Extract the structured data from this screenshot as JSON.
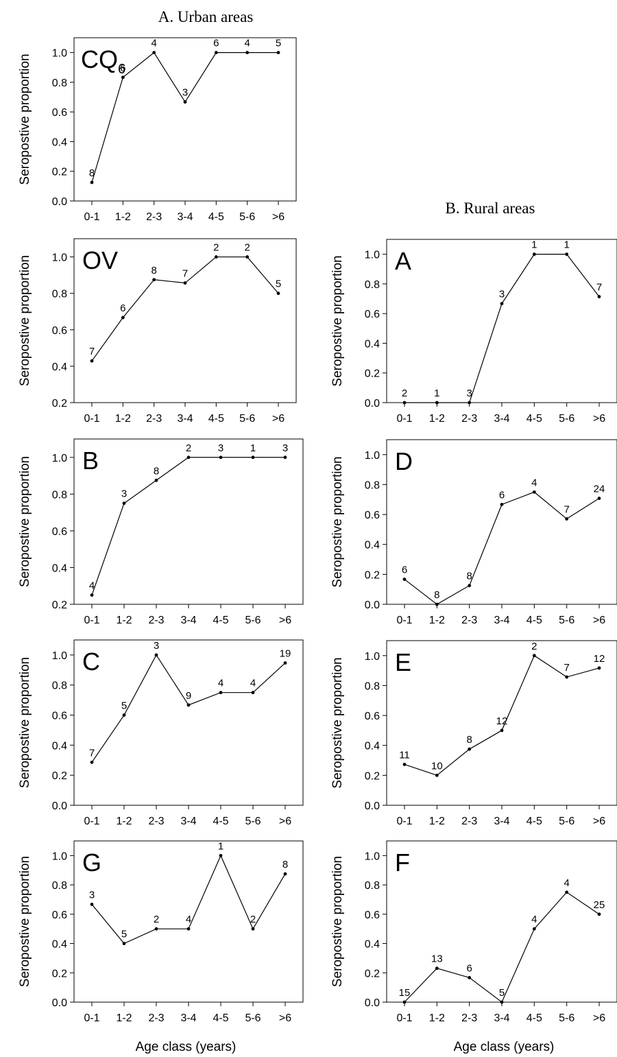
{
  "figure": {
    "heading_urban": "A.  Urban areas",
    "heading_rural": "B. Rural areas",
    "xlabel_left": "Age class (years)",
    "xlabel_right": "Age class (years)"
  },
  "chart_data": [
    {
      "id": "urban-cq",
      "type": "line",
      "panel_label": "CQ",
      "categories": [
        "0-1",
        "1-2",
        "2-3",
        "3-4",
        "4-5",
        "5-6",
        ">6"
      ],
      "values": [
        0.125,
        0.833,
        1.0,
        0.667,
        1.0,
        1.0,
        1.0
      ],
      "sample_sizes": [
        "8",
        "6",
        "4",
        "3",
        "6",
        "4",
        "5"
      ],
      "ylabel": "Seropostive proportion",
      "xlabel": "",
      "ylim": [
        0.0,
        1.1
      ],
      "yticks": [
        "0.0",
        "0.2",
        "0.4",
        "0.6",
        "0.8",
        "1.0"
      ],
      "grid": false
    },
    {
      "id": "urban-ov",
      "type": "line",
      "panel_label": "OV",
      "categories": [
        "0-1",
        "1-2",
        "2-3",
        "3-4",
        "4-5",
        "5-6",
        ">6"
      ],
      "values": [
        0.429,
        0.667,
        0.875,
        0.857,
        1.0,
        1.0,
        0.8
      ],
      "sample_sizes": [
        "7",
        "6",
        "8",
        "7",
        "2",
        "2",
        "5"
      ],
      "ylabel": "Seropostive proportion",
      "xlabel": "",
      "ylim": [
        0.2,
        1.1
      ],
      "yticks": [
        "0.2",
        "0.4",
        "0.6",
        "0.8",
        "1.0"
      ],
      "grid": false
    },
    {
      "id": "urban-b",
      "type": "line",
      "panel_label": "B",
      "categories": [
        "0-1",
        "1-2",
        "2-3",
        "3-4",
        "4-5",
        "5-6",
        ">6"
      ],
      "values": [
        0.25,
        0.75,
        0.875,
        1.0,
        1.0,
        1.0,
        1.0
      ],
      "sample_sizes": [
        "4",
        "3",
        "8",
        "2",
        "3",
        "1",
        "3"
      ],
      "ylabel": "Seropostive proportion",
      "xlabel": "",
      "ylim": [
        0.2,
        1.1
      ],
      "yticks": [
        "0.2",
        "0.4",
        "0.6",
        "0.8",
        "1.0"
      ],
      "grid": false
    },
    {
      "id": "urban-c",
      "type": "line",
      "panel_label": "C",
      "categories": [
        "0-1",
        "1-2",
        "2-3",
        "3-4",
        "4-5",
        "5-6",
        ">6"
      ],
      "values": [
        0.286,
        0.6,
        1.0,
        0.667,
        0.75,
        0.75,
        0.947
      ],
      "sample_sizes": [
        "7",
        "5",
        "3",
        "9",
        "4",
        "4",
        "19"
      ],
      "ylabel": "Seropostive proportion",
      "xlabel": "",
      "ylim": [
        0.0,
        1.1
      ],
      "yticks": [
        "0.0",
        "0.2",
        "0.4",
        "0.6",
        "0.8",
        "1.0"
      ],
      "grid": false
    },
    {
      "id": "urban-g",
      "type": "line",
      "panel_label": "G",
      "categories": [
        "0-1",
        "1-2",
        "2-3",
        "3-4",
        "4-5",
        "5-6",
        ">6"
      ],
      "values": [
        0.667,
        0.4,
        0.5,
        0.5,
        1.0,
        0.5,
        0.875
      ],
      "sample_sizes": [
        "3",
        "5",
        "2",
        "4",
        "1",
        "2",
        "8"
      ],
      "ylabel": "Seropostive proportion",
      "xlabel": "Age class (years)",
      "ylim": [
        0.0,
        1.1
      ],
      "yticks": [
        "0.0",
        "0.2",
        "0.4",
        "0.6",
        "0.8",
        "1.0"
      ],
      "grid": false
    },
    {
      "id": "rural-a",
      "type": "line",
      "panel_label": "A",
      "categories": [
        "0-1",
        "1-2",
        "2-3",
        "3-4",
        "4-5",
        "5-6",
        ">6"
      ],
      "values": [
        0.0,
        0.0,
        0.0,
        0.667,
        1.0,
        1.0,
        0.714
      ],
      "sample_sizes": [
        "2",
        "1",
        "3",
        "3",
        "1",
        "1",
        "7"
      ],
      "ylabel": "Seropostive proportion",
      "xlabel": "",
      "ylim": [
        0.0,
        1.1
      ],
      "yticks": [
        "0.0",
        "0.2",
        "0.4",
        "0.6",
        "0.8",
        "1.0"
      ],
      "grid": false
    },
    {
      "id": "rural-d",
      "type": "line",
      "panel_label": "D",
      "categories": [
        "0-1",
        "1-2",
        "2-3",
        "3-4",
        "4-5",
        "5-6",
        ">6"
      ],
      "values": [
        0.167,
        0.0,
        0.125,
        0.667,
        0.75,
        0.571,
        0.708
      ],
      "sample_sizes": [
        "6",
        "8",
        "8",
        "6",
        "4",
        "7",
        "24"
      ],
      "ylabel": "Seropostive proportion",
      "xlabel": "",
      "ylim": [
        0.0,
        1.1
      ],
      "yticks": [
        "0.0",
        "0.2",
        "0.4",
        "0.6",
        "0.8",
        "1.0"
      ],
      "grid": false
    },
    {
      "id": "rural-e",
      "type": "line",
      "panel_label": "E",
      "categories": [
        "0-1",
        "1-2",
        "2-3",
        "3-4",
        "4-5",
        "5-6",
        ">6"
      ],
      "values": [
        0.273,
        0.2,
        0.375,
        0.5,
        1.0,
        0.857,
        0.917
      ],
      "sample_sizes": [
        "11",
        "10",
        "8",
        "12",
        "2",
        "7",
        "12"
      ],
      "ylabel": "Seropostive proportion",
      "xlabel": "",
      "ylim": [
        0.0,
        1.1
      ],
      "yticks": [
        "0.0",
        "0.2",
        "0.4",
        "0.6",
        "0.8",
        "1.0"
      ],
      "grid": false
    },
    {
      "id": "rural-f",
      "type": "line",
      "panel_label": "F",
      "categories": [
        "0-1",
        "1-2",
        "2-3",
        "3-4",
        "4-5",
        "5-6",
        ">6"
      ],
      "values": [
        0.0,
        0.231,
        0.167,
        0.0,
        0.5,
        0.75,
        0.6
      ],
      "sample_sizes": [
        "15",
        "13",
        "6",
        "5",
        "4",
        "4",
        "25"
      ],
      "ylabel": "Seropostive proportion",
      "xlabel": "Age class (years)",
      "ylim": [
        0.0,
        1.1
      ],
      "yticks": [
        "0.0",
        "0.2",
        "0.4",
        "0.6",
        "0.8",
        "1.0"
      ],
      "grid": false
    }
  ]
}
